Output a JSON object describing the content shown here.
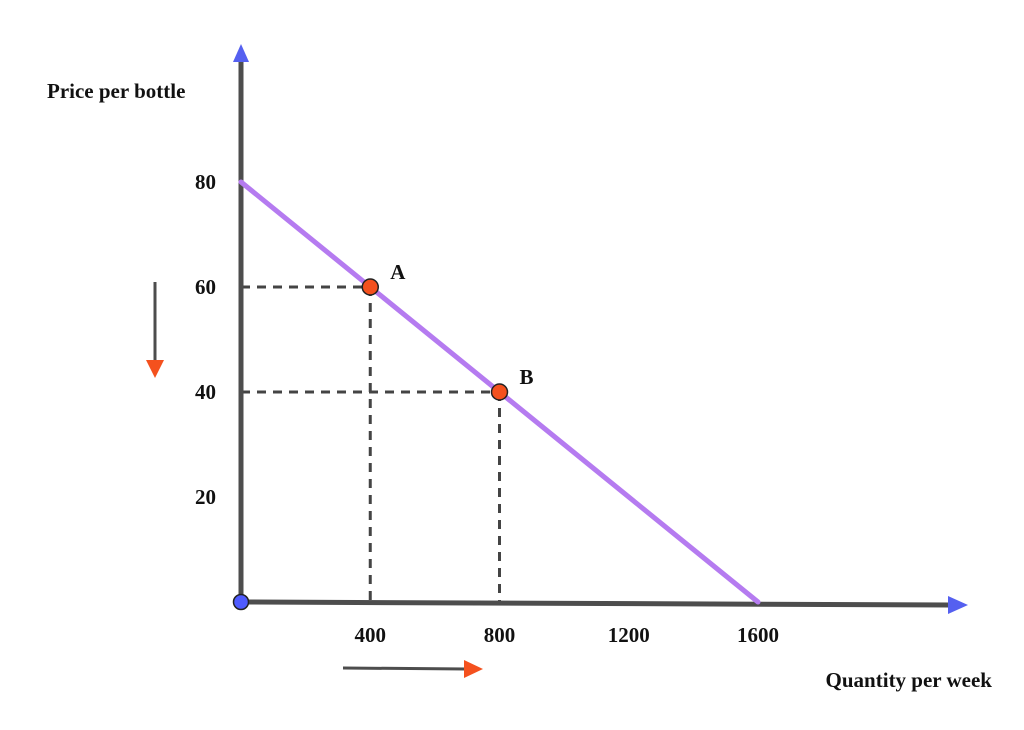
{
  "chart_data": {
    "type": "line",
    "title": "",
    "xlabel": "Quantity per week",
    "ylabel": "Price per bottle",
    "xlim": [
      0,
      1600
    ],
    "ylim": [
      0,
      80
    ],
    "x_ticks": [
      {
        "value": 400,
        "label": "400"
      },
      {
        "value": 800,
        "label": "800"
      },
      {
        "value": 1200,
        "label": "1200"
      },
      {
        "value": 1600,
        "label": "1600"
      }
    ],
    "y_ticks": [
      {
        "value": 20,
        "label": "20"
      },
      {
        "value": 40,
        "label": "40"
      },
      {
        "value": 60,
        "label": "60"
      },
      {
        "value": 80,
        "label": "80"
      }
    ],
    "grid": false,
    "series": [
      {
        "x": [
          0,
          1600
        ],
        "y": [
          80,
          0
        ],
        "color": "#b57bf0"
      }
    ],
    "points": [
      {
        "label": "A",
        "x": 400,
        "y": 60,
        "color": "#f4511e"
      },
      {
        "label": "B",
        "x": 800,
        "y": 40,
        "color": "#f4511e"
      }
    ],
    "origin_point": {
      "x": 0,
      "y": 0,
      "color": "#4f5bff"
    },
    "colors": {
      "axis": "#4d4d4d",
      "axis_arrow": "#5560f0",
      "guide": "#444444",
      "movement_arrow": "#f4511e"
    },
    "annotations": [
      {
        "kind": "arrow",
        "direction": "down",
        "meaning": "price decrease"
      },
      {
        "kind": "arrow",
        "direction": "right",
        "meaning": "quantity increase"
      }
    ]
  }
}
